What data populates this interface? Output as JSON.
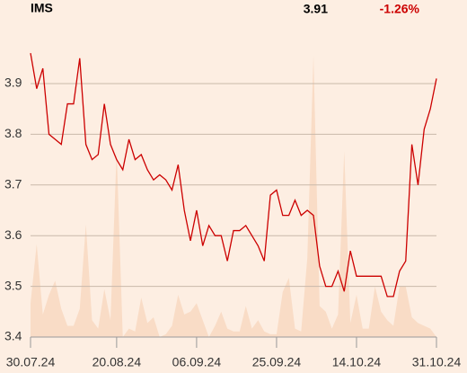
{
  "header": {
    "symbol": "IMS",
    "price": "3.91",
    "change": "-1.26%"
  },
  "chart_data": {
    "type": "line",
    "categories": [
      "30.07.24",
      null,
      null,
      null,
      null,
      null,
      null,
      null,
      null,
      null,
      null,
      null,
      null,
      null,
      "20.08.24",
      null,
      null,
      null,
      null,
      null,
      null,
      null,
      null,
      null,
      null,
      null,
      null,
      "06.09.24",
      null,
      null,
      null,
      null,
      null,
      null,
      null,
      null,
      null,
      null,
      null,
      null,
      "25.09.24",
      null,
      null,
      null,
      null,
      null,
      null,
      null,
      null,
      null,
      null,
      null,
      null,
      "14.10.24",
      null,
      null,
      null,
      null,
      null,
      null,
      null,
      null,
      null,
      null,
      null,
      null,
      "31.10.24"
    ],
    "series": [
      {
        "color": "#cc0000",
        "values": [
          3.96,
          3.89,
          3.93,
          3.8,
          3.79,
          3.78,
          3.86,
          3.86,
          3.95,
          3.78,
          3.75,
          3.76,
          3.86,
          3.78,
          3.75,
          3.73,
          3.79,
          3.75,
          3.76,
          3.73,
          3.71,
          3.72,
          3.71,
          3.69,
          3.74,
          3.65,
          3.59,
          3.65,
          3.58,
          3.62,
          3.6,
          3.6,
          3.55,
          3.61,
          3.61,
          3.62,
          3.6,
          3.58,
          3.55,
          3.68,
          3.69,
          3.64,
          3.64,
          3.67,
          3.64,
          3.65,
          3.64,
          3.54,
          3.5,
          3.5,
          3.53,
          3.49,
          3.57,
          3.52,
          3.52,
          3.52,
          3.52,
          3.52,
          3.48,
          3.48,
          3.53,
          3.55,
          3.78,
          3.7,
          3.81,
          3.85,
          3.91
        ]
      },
      {
        "color": "#f9dcc6",
        "axis": "y2",
        "values": [
          12,
          33,
          8,
          15,
          20,
          10,
          4,
          4,
          10,
          40,
          6,
          3,
          17,
          6,
          66,
          0,
          3,
          2,
          14,
          5,
          7,
          0,
          1,
          4,
          15,
          8,
          9,
          12,
          6,
          0,
          4,
          9,
          3,
          2,
          2,
          11,
          3,
          6,
          2,
          1,
          1,
          16,
          21,
          3,
          2,
          28,
          100,
          11,
          9,
          3,
          8,
          66,
          5,
          15,
          3,
          3,
          18,
          9,
          6,
          4,
          18,
          18,
          7,
          5,
          4,
          3,
          0
        ]
      }
    ],
    "ylim": [
      3.4,
      4.0
    ],
    "yticks": [
      3.4,
      3.5,
      3.6,
      3.7,
      3.8,
      3.9
    ],
    "y2lim": [
      0,
      100
    ],
    "grid": true
  }
}
